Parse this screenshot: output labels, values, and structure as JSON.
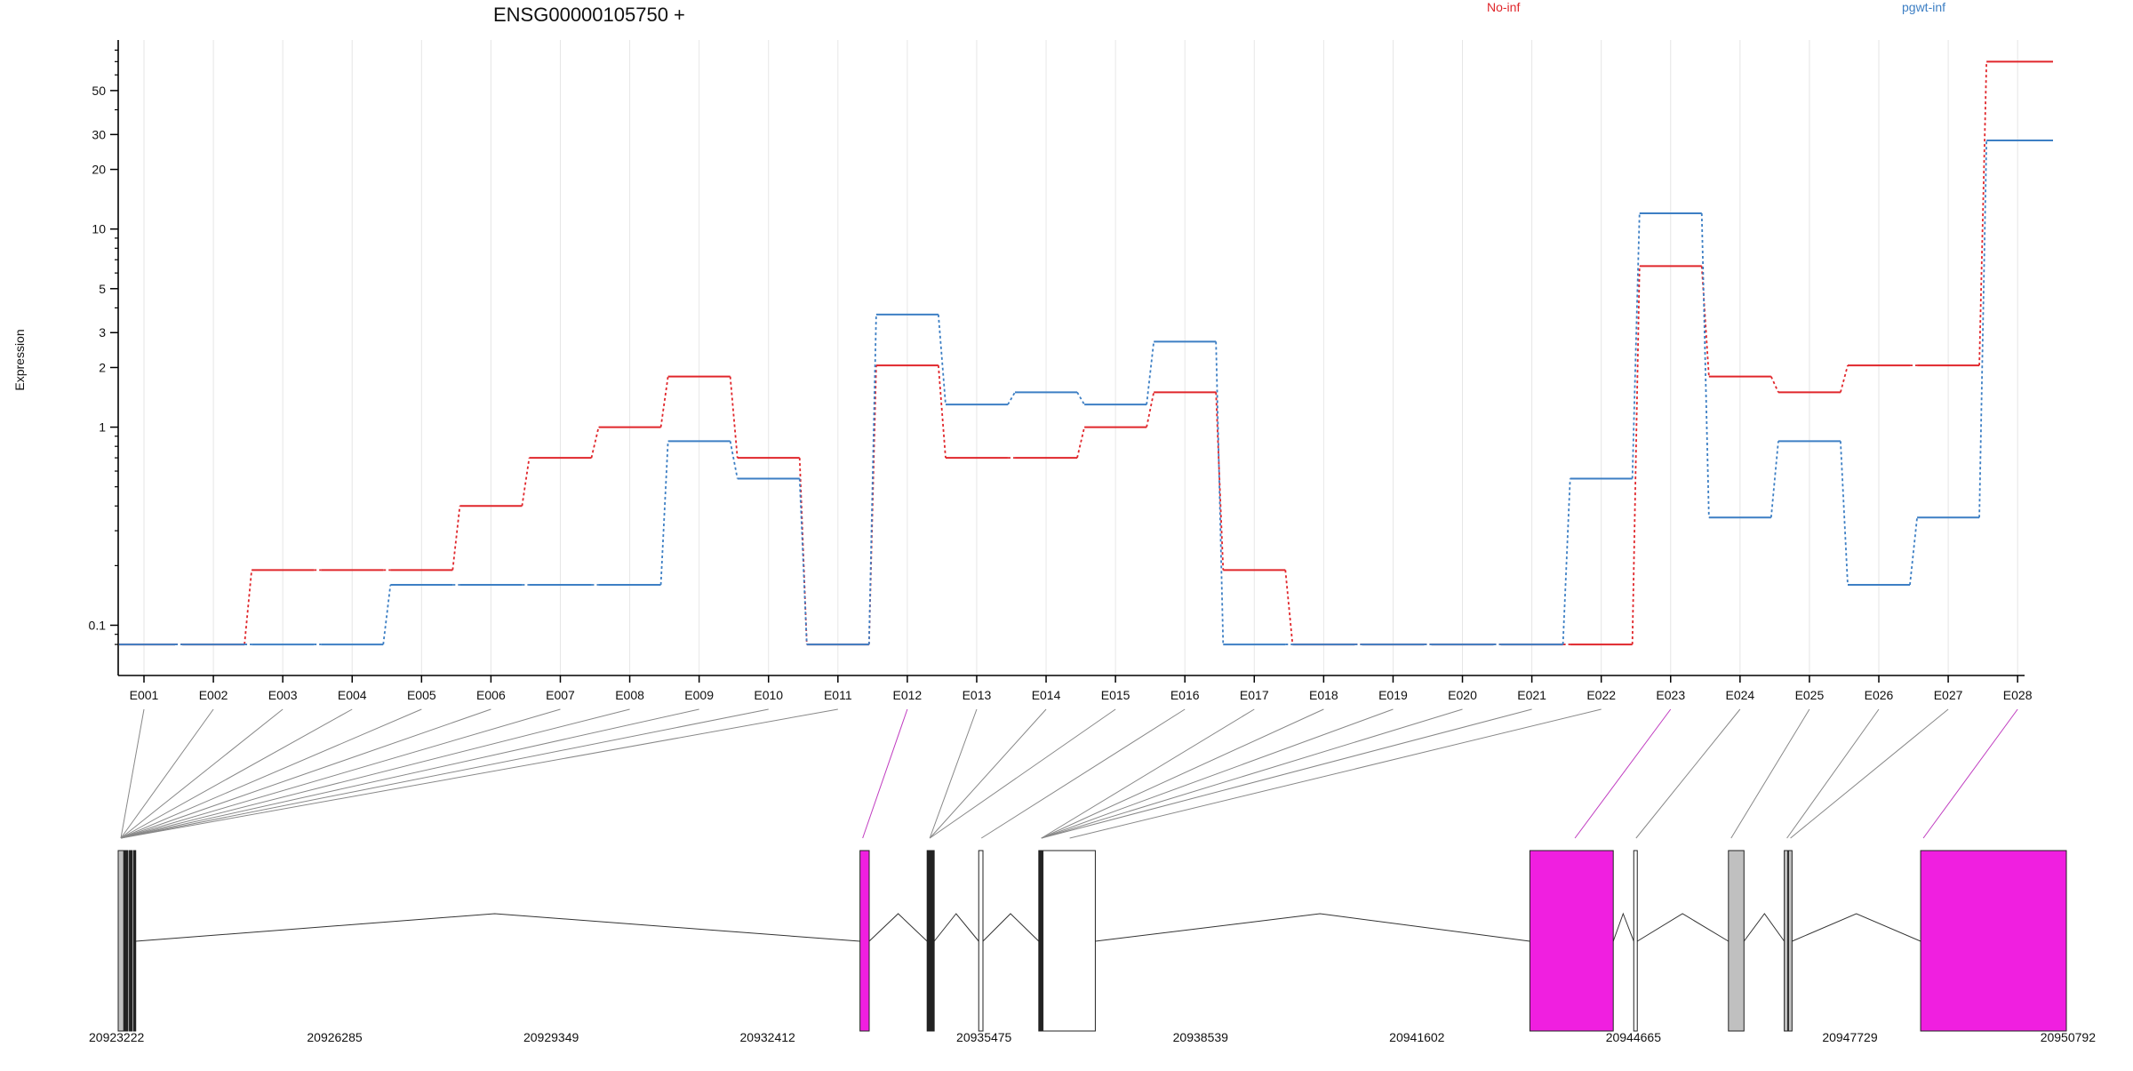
{
  "chart_data": {
    "type": "line",
    "title": "ENSG00000105750 +",
    "ylabel": "Expression",
    "xlabel": "",
    "y_scale": "log",
    "ylim": [
      0.07,
      90
    ],
    "y_ticks": [
      0.1,
      1,
      2,
      3,
      5,
      10,
      20,
      30,
      50
    ],
    "y_tick_labels": [
      "0.1",
      "1",
      "2",
      "3",
      "5",
      "10",
      "20",
      "30",
      "50"
    ],
    "grid": "vertical light lines at each exon",
    "legend_position": "top",
    "categories": [
      "E001",
      "E002",
      "E003",
      "E004",
      "E005",
      "E006",
      "E007",
      "E008",
      "E009",
      "E010",
      "E011",
      "E012",
      "E013",
      "E014",
      "E015",
      "E016",
      "E017",
      "E018",
      "E019",
      "E020",
      "E021",
      "E022",
      "E023",
      "E024",
      "E025",
      "E026",
      "E027",
      "E028"
    ],
    "series": [
      {
        "name": "No-inf",
        "color": "#e0262b",
        "values": [
          0.08,
          0.08,
          0.19,
          0.19,
          0.19,
          0.4,
          0.7,
          1.0,
          1.8,
          0.7,
          0.08,
          2.05,
          0.7,
          0.7,
          1.0,
          1.5,
          0.19,
          0.08,
          0.08,
          0.08,
          0.08,
          0.08,
          6.5,
          1.8,
          1.5,
          2.05,
          2.05,
          70
        ]
      },
      {
        "name": "pgwt-inf",
        "color": "#3d7fc4",
        "values": [
          0.08,
          0.08,
          0.08,
          0.08,
          0.16,
          0.16,
          0.16,
          0.16,
          0.85,
          0.55,
          0.08,
          3.7,
          1.3,
          1.5,
          1.3,
          2.7,
          0.08,
          0.08,
          0.08,
          0.08,
          0.08,
          0.55,
          12,
          0.35,
          0.85,
          0.16,
          0.35,
          28
        ]
      }
    ],
    "gene_model": {
      "genomic_ticks": [
        "20923222",
        "20926285",
        "20929349",
        "20932412",
        "20935475",
        "20938539",
        "20941602",
        "20944665",
        "20947729",
        "20950792"
      ],
      "genomic_range": [
        20923222,
        20950792
      ],
      "highlight_color": "#f01fe0",
      "gray_color": "#c0c0c0",
      "highlighted_exons": [
        "E012",
        "E023",
        "E028"
      ],
      "exon_blocks": [
        {
          "exon": "E001",
          "start": 20923222,
          "end": 20923300,
          "fill": "gray"
        },
        {
          "exon": "E002",
          "start": 20923310,
          "end": 20923360,
          "fill": "dark"
        },
        {
          "exon": "E009",
          "start": 20923380,
          "end": 20923420,
          "fill": "dark"
        },
        {
          "exon": "E011",
          "start": 20923440,
          "end": 20923470,
          "fill": "dark"
        },
        {
          "exon": "E012",
          "start": 20933720,
          "end": 20933850,
          "fill": "magenta"
        },
        {
          "exon": "E013",
          "start": 20934670,
          "end": 20934720,
          "fill": "dark"
        },
        {
          "exon": "E014",
          "start": 20934730,
          "end": 20934770,
          "fill": "dark"
        },
        {
          "exon": "E015",
          "start": 20935400,
          "end": 20935460,
          "fill": "white"
        },
        {
          "exon": "E016",
          "start": 20936250,
          "end": 20936300,
          "fill": "dark"
        },
        {
          "exon": "E017",
          "start": 20936310,
          "end": 20937050,
          "fill": "white"
        },
        {
          "exon": "E023",
          "start": 20943200,
          "end": 20944380,
          "fill": "magenta"
        },
        {
          "exon": "E024",
          "start": 20944670,
          "end": 20944720,
          "fill": "white"
        },
        {
          "exon": "E025",
          "start": 20946010,
          "end": 20946230,
          "fill": "gray"
        },
        {
          "exon": "E026",
          "start": 20946800,
          "end": 20946850,
          "fill": "gray"
        },
        {
          "exon": "E027",
          "start": 20946860,
          "end": 20946910,
          "fill": "gray"
        },
        {
          "exon": "E028",
          "start": 20948730,
          "end": 20950792,
          "fill": "magenta"
        }
      ],
      "introns": [
        {
          "from": 20923470,
          "to": 20933720,
          "peak": 20928550
        },
        {
          "from": 20933850,
          "to": 20934670,
          "peak": 20934260
        },
        {
          "from": 20934770,
          "to": 20935400,
          "peak": 20935080
        },
        {
          "from": 20935460,
          "to": 20936250,
          "peak": 20935850
        },
        {
          "from": 20937050,
          "to": 20943200,
          "peak": 20940230
        },
        {
          "from": 20944380,
          "to": 20944670,
          "peak": 20944520
        },
        {
          "from": 20944720,
          "to": 20946010,
          "peak": 20945360
        },
        {
          "from": 20946230,
          "to": 20946800,
          "peak": 20946520
        },
        {
          "from": 20946910,
          "to": 20948730,
          "peak": 20947820
        }
      ],
      "connector_targets": [
        20923222,
        20923222,
        20923222,
        20923222,
        20923222,
        20923222,
        20923222,
        20923222,
        20923222,
        20923222,
        20923222,
        20933720,
        20934670,
        20934670,
        20934670,
        20935400,
        20936250,
        20936250,
        20936250,
        20936250,
        20936250,
        20936650,
        20943800,
        20944665,
        20946010,
        20946800,
        20946850,
        20948730
      ]
    }
  }
}
